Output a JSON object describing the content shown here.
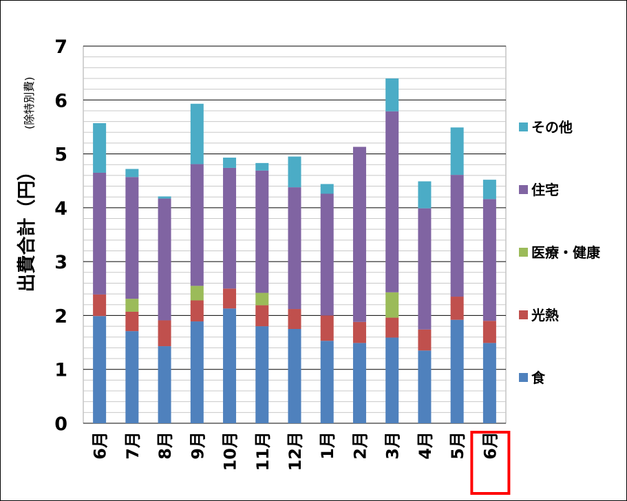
{
  "chart_data": {
    "type": "bar",
    "stacked": true,
    "categories": [
      "6月",
      "7月",
      "8月",
      "9月",
      "10月",
      "11月",
      "12月",
      "1月",
      "2月",
      "3月",
      "4月",
      "5月",
      "6月"
    ],
    "series": [
      {
        "name": "食",
        "color": "#4f81bd",
        "values": [
          1.99,
          1.71,
          1.43,
          1.89,
          2.13,
          1.8,
          1.75,
          1.53,
          1.49,
          1.59,
          1.35,
          1.92,
          1.49
        ]
      },
      {
        "name": "光熱",
        "color": "#c0504d",
        "values": [
          0.4,
          0.36,
          0.48,
          0.39,
          0.37,
          0.39,
          0.37,
          0.47,
          0.39,
          0.37,
          0.39,
          0.43,
          0.41
        ]
      },
      {
        "name": "医療・健康",
        "color": "#9bbb59",
        "values": [
          0,
          0.24,
          0,
          0.27,
          0,
          0.23,
          0,
          0,
          0,
          0.47,
          0,
          0,
          0
        ]
      },
      {
        "name": "住宅",
        "color": "#8064a2",
        "values": [
          2.26,
          2.26,
          2.26,
          2.26,
          2.24,
          2.27,
          2.26,
          2.26,
          3.25,
          3.36,
          2.25,
          2.26,
          2.26
        ]
      },
      {
        "name": "その他",
        "color": "#4bacc6",
        "values": [
          0.92,
          0.15,
          0.04,
          1.12,
          0.19,
          0.14,
          0.57,
          0.18,
          0,
          0.61,
          0.5,
          0.88,
          0.36
        ]
      }
    ],
    "ylabel": "出費合計（円）",
    "ylabel_note": "(除特別費)",
    "ylim": [
      0,
      7
    ],
    "yticks": [
      "0",
      "1",
      "2",
      "3",
      "4",
      "5",
      "6",
      "7"
    ],
    "grid": {
      "major": true,
      "minor": true
    },
    "legend_position": "right",
    "highlight": {
      "category_index": 12,
      "color": "#ff0000"
    }
  }
}
